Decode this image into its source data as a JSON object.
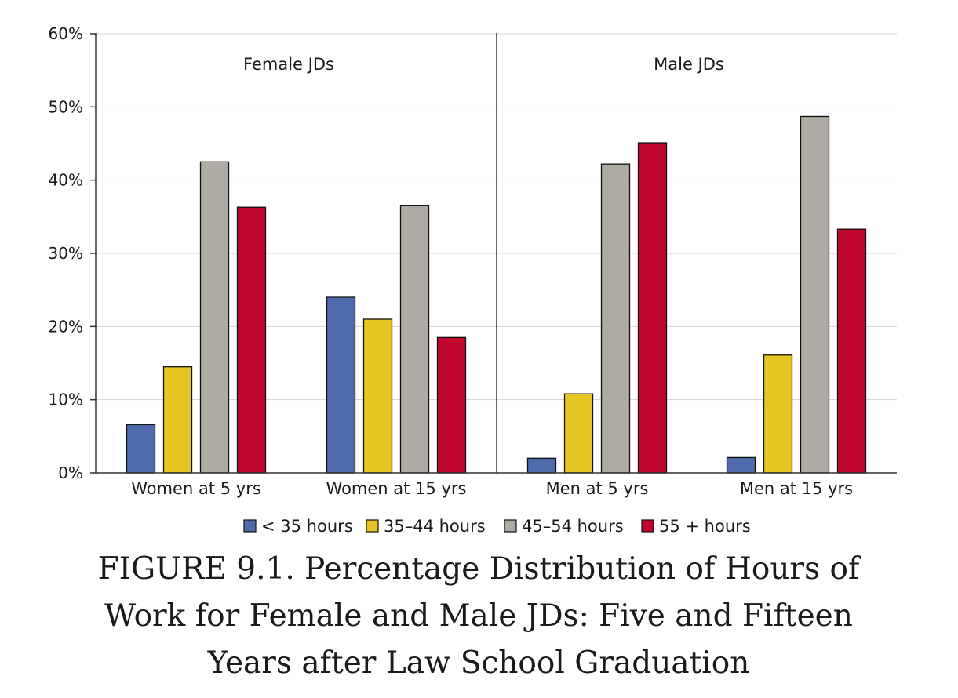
{
  "chart_data": {
    "type": "bar",
    "ylim": [
      0,
      60
    ],
    "yticks": [
      0,
      10,
      20,
      30,
      40,
      50,
      60
    ],
    "ytick_labels": [
      "0%",
      "10%",
      "20%",
      "30%",
      "40%",
      "50%",
      "60%"
    ],
    "grid": true,
    "panels": [
      "Female JDs",
      "Male JDs"
    ],
    "categories": [
      "Women at 5 yrs",
      "Women at 15 yrs",
      "Men at 5 yrs",
      "Men at 15 yrs"
    ],
    "legend_position": "bottom",
    "series": [
      {
        "name": "< 35 hours",
        "color": "#4f6aad",
        "values": [
          6.6,
          24.0,
          2.0,
          2.1
        ]
      },
      {
        "name": "35–44 hours",
        "color": "#e6c522",
        "values": [
          14.5,
          21.0,
          10.8,
          16.1
        ]
      },
      {
        "name": "45–54 hours",
        "color": "#aeaaa4",
        "values": [
          42.5,
          36.5,
          42.2,
          48.7
        ]
      },
      {
        "name": "55 + hours",
        "color": "#c0062c",
        "values": [
          36.3,
          18.5,
          45.1,
          33.3
        ]
      }
    ]
  },
  "caption": {
    "figure_number": "FIGURE 9.1.",
    "line1": "Percentage Distribution of Hours of",
    "line2": "Work for Female and Male JDs: Five and Fifteen",
    "line3": "Years after Law School Graduation"
  }
}
